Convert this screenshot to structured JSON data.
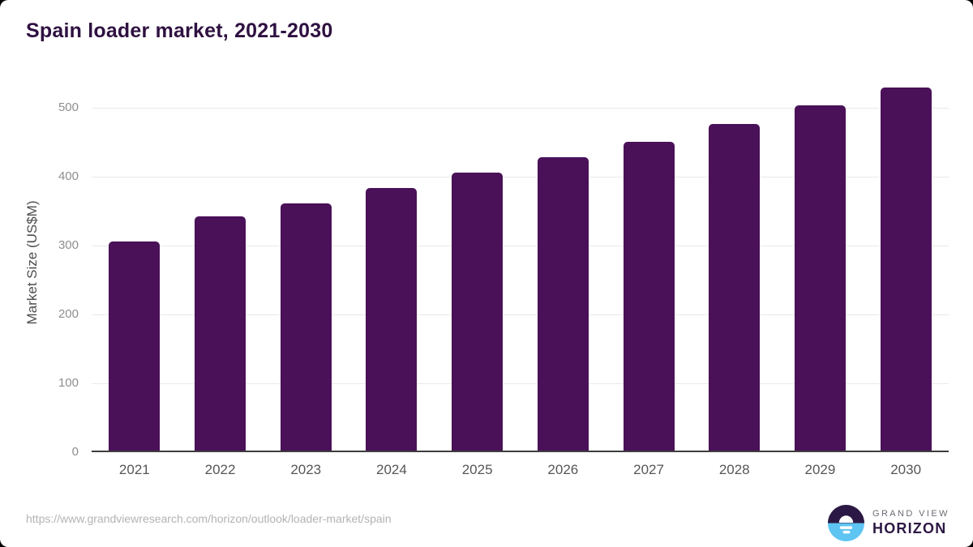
{
  "chart_data": {
    "type": "bar",
    "title": "Spain loader market, 2021-2030",
    "categories": [
      "2021",
      "2022",
      "2023",
      "2024",
      "2025",
      "2026",
      "2027",
      "2028",
      "2029",
      "2030"
    ],
    "values": [
      303,
      340,
      358,
      381,
      403,
      425,
      448,
      474,
      501,
      526
    ],
    "xlabel": "",
    "ylabel": "Market Size (US$M)",
    "ylim": [
      0,
      550
    ],
    "yticks": [
      0,
      100,
      200,
      300,
      400,
      500
    ],
    "grid": true,
    "legend": false,
    "bar_color": "#4a1158",
    "title_color": "#2f1141"
  },
  "footer": {
    "url": "https://www.grandviewresearch.com/horizon/outlook/loader-market/spain",
    "logo": {
      "line1": "GRAND VIEW",
      "line2": "HORIZON",
      "navy": "#2c1844",
      "blue": "#5ec5f2"
    }
  }
}
